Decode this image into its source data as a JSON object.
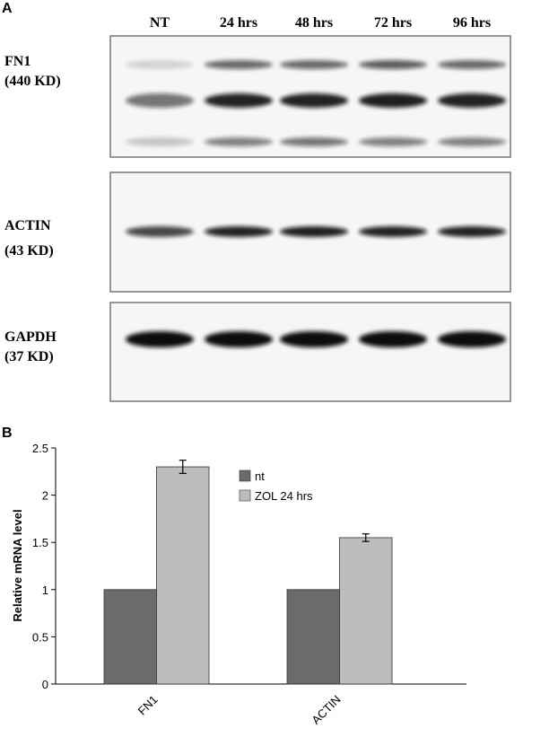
{
  "panels": [
    "A",
    "B"
  ],
  "blot": {
    "lanes": [
      "NT",
      "24 hrs",
      "48 hrs",
      "72 hrs",
      "96 hrs"
    ],
    "rows": [
      {
        "name": "FN1",
        "size": "(440 KD)"
      },
      {
        "name": "ACTIN",
        "size": "(43 KD)"
      },
      {
        "name": "GAPDH",
        "size": "(37 KD)"
      }
    ]
  },
  "chart_data": {
    "type": "bar",
    "ylabel": "Relative mRNA level",
    "categories": [
      "FN1",
      "ACTIN"
    ],
    "series": [
      {
        "name": "nt",
        "color": "#6b6b6b",
        "values": [
          1,
          1
        ]
      },
      {
        "name": "ZOL 24 hrs",
        "color": "#bdbdbd",
        "values": [
          2.3,
          1.55
        ],
        "errors": [
          0.07,
          0.04
        ]
      }
    ],
    "ylim": [
      0,
      2.5
    ],
    "yticks": [
      0,
      0.5,
      1,
      1.5,
      2,
      2.5
    ],
    "grid": false
  }
}
